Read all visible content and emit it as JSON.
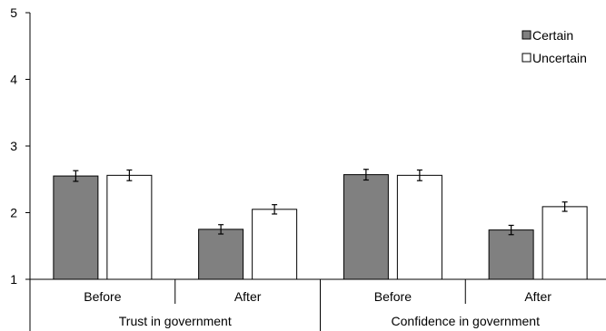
{
  "chart_data": {
    "type": "bar",
    "title": "",
    "xlabel": "",
    "ylabel": "",
    "ylim": [
      1,
      5
    ],
    "yticks": [
      "1",
      "2",
      "3",
      "4",
      "5"
    ],
    "grid": false,
    "legend_position": "top-right",
    "groups": [
      {
        "label": "Trust in government",
        "categories": [
          "Before",
          "After"
        ]
      },
      {
        "label": "Confidence in government",
        "categories": [
          "Before",
          "After"
        ]
      }
    ],
    "series": [
      {
        "name": "Certain",
        "color": "#808080",
        "values": [
          2.55,
          1.75,
          2.57,
          1.74
        ],
        "errors": [
          0.08,
          0.07,
          0.08,
          0.07
        ]
      },
      {
        "name": "Uncertain",
        "color": "#ffffff",
        "values": [
          2.56,
          2.05,
          2.56,
          2.09
        ],
        "errors": [
          0.08,
          0.07,
          0.08,
          0.07
        ]
      }
    ]
  }
}
